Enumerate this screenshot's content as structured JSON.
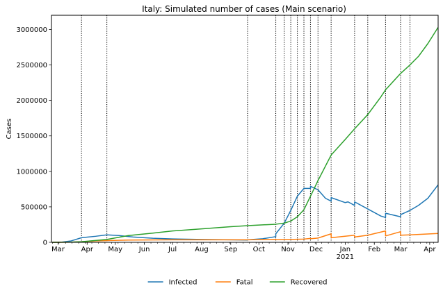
{
  "chart_data": {
    "type": "line",
    "title": "Italy: Simulated number of cases (Main scenario)",
    "xlabel": "",
    "ylabel": "Cases",
    "ylim": [
      0,
      3200000
    ],
    "xlim": [
      "2020-02-23",
      "2021-04-10"
    ],
    "y_ticks": [
      0,
      500000,
      1000000,
      1500000,
      2000000,
      2500000,
      3000000
    ],
    "x_ticks": [
      {
        "date": "2020-03-01",
        "label": "Mar"
      },
      {
        "date": "2020-04-01",
        "label": "Apr"
      },
      {
        "date": "2020-05-01",
        "label": "May"
      },
      {
        "date": "2020-06-01",
        "label": "Jun"
      },
      {
        "date": "2020-07-01",
        "label": "Jul"
      },
      {
        "date": "2020-08-01",
        "label": "Aug"
      },
      {
        "date": "2020-09-01",
        "label": "Sep"
      },
      {
        "date": "2020-10-01",
        "label": "Oct"
      },
      {
        "date": "2020-11-01",
        "label": "Nov"
      },
      {
        "date": "2020-12-01",
        "label": "Dec"
      },
      {
        "date": "2021-01-01",
        "label": "Jan"
      },
      {
        "date": "2021-02-01",
        "label": "Feb"
      },
      {
        "date": "2021-03-01",
        "label": "Mar"
      },
      {
        "date": "2021-04-01",
        "label": "Apr"
      }
    ],
    "year_label": {
      "date": "2021-01-01",
      "text": "2021"
    },
    "grid": false,
    "legend_position": "bottom-center",
    "change_dates": [
      "2020-03-26",
      "2020-04-22",
      "2020-09-19",
      "2020-10-19",
      "2020-10-28",
      "2020-11-04",
      "2020-11-11",
      "2020-11-18",
      "2020-11-25",
      "2020-12-03",
      "2020-12-17",
      "2021-01-11",
      "2021-01-25",
      "2021-02-13",
      "2021-03-01",
      "2021-03-11"
    ],
    "series": [
      {
        "name": "Infected",
        "color": "#1f77b4",
        "points": [
          [
            "2020-02-24",
            300
          ],
          [
            "2020-03-05",
            3000
          ],
          [
            "2020-03-15",
            20000
          ],
          [
            "2020-03-26",
            65000
          ],
          [
            "2020-04-10",
            85000
          ],
          [
            "2020-04-22",
            105000
          ],
          [
            "2020-05-05",
            95000
          ],
          [
            "2020-05-20",
            75000
          ],
          [
            "2020-06-10",
            58000
          ],
          [
            "2020-07-01",
            48000
          ],
          [
            "2020-08-01",
            40000
          ],
          [
            "2020-09-01",
            35000
          ],
          [
            "2020-09-19",
            32000
          ],
          [
            "2020-09-19",
            35000
          ],
          [
            "2020-10-05",
            50000
          ],
          [
            "2020-10-19",
            80000
          ],
          [
            "2020-10-19",
            120000
          ],
          [
            "2020-10-28",
            270000
          ],
          [
            "2020-11-04",
            450000
          ],
          [
            "2020-11-11",
            650000
          ],
          [
            "2020-11-18",
            760000
          ],
          [
            "2020-11-25",
            760000
          ],
          [
            "2020-11-25",
            790000
          ],
          [
            "2020-12-03",
            740000
          ],
          [
            "2020-12-11",
            620000
          ],
          [
            "2020-12-17",
            580000
          ],
          [
            "2020-12-17",
            630000
          ],
          [
            "2021-01-01",
            560000
          ],
          [
            "2021-01-04",
            570000
          ],
          [
            "2021-01-11",
            520000
          ],
          [
            "2021-01-11",
            570000
          ],
          [
            "2021-01-25",
            470000
          ],
          [
            "2021-02-08",
            370000
          ],
          [
            "2021-02-13",
            350000
          ],
          [
            "2021-02-13",
            410000
          ],
          [
            "2021-03-01",
            360000
          ],
          [
            "2021-03-01",
            390000
          ],
          [
            "2021-03-11",
            450000
          ],
          [
            "2021-03-20",
            520000
          ],
          [
            "2021-03-30",
            620000
          ],
          [
            "2021-04-10",
            810000
          ]
        ]
      },
      {
        "name": "Fatal",
        "color": "#ff7f0e",
        "points": [
          [
            "2020-02-24",
            0
          ],
          [
            "2020-03-15",
            2000
          ],
          [
            "2020-03-26",
            8000
          ],
          [
            "2020-04-10",
            20000
          ],
          [
            "2020-04-22",
            25000
          ],
          [
            "2020-05-15",
            32000
          ],
          [
            "2020-07-01",
            35000
          ],
          [
            "2020-09-19",
            36000
          ],
          [
            "2020-10-19",
            42000
          ],
          [
            "2020-10-19",
            38000
          ],
          [
            "2020-11-04",
            40000
          ],
          [
            "2020-11-18",
            45000
          ],
          [
            "2020-11-25",
            55000
          ],
          [
            "2020-11-25",
            50000
          ],
          [
            "2020-12-03",
            60000
          ],
          [
            "2020-12-17",
            120000
          ],
          [
            "2020-12-17",
            65000
          ],
          [
            "2021-01-11",
            100000
          ],
          [
            "2021-01-11",
            75000
          ],
          [
            "2021-01-25",
            100000
          ],
          [
            "2021-02-13",
            160000
          ],
          [
            "2021-02-13",
            90000
          ],
          [
            "2021-03-01",
            150000
          ],
          [
            "2021-03-01",
            100000
          ],
          [
            "2021-03-11",
            105000
          ],
          [
            "2021-04-10",
            125000
          ]
        ]
      },
      {
        "name": "Recovered",
        "color": "#2ca02c",
        "points": [
          [
            "2020-02-24",
            0
          ],
          [
            "2020-03-15",
            2000
          ],
          [
            "2020-03-26",
            8000
          ],
          [
            "2020-04-22",
            40000
          ],
          [
            "2020-05-15",
            95000
          ],
          [
            "2020-06-10",
            130000
          ],
          [
            "2020-07-01",
            160000
          ],
          [
            "2020-08-01",
            190000
          ],
          [
            "2020-09-01",
            220000
          ],
          [
            "2020-09-19",
            235000
          ],
          [
            "2020-10-19",
            255000
          ],
          [
            "2020-10-28",
            270000
          ],
          [
            "2020-11-04",
            300000
          ],
          [
            "2020-11-11",
            360000
          ],
          [
            "2020-11-18",
            460000
          ],
          [
            "2020-11-25",
            650000
          ],
          [
            "2020-12-03",
            870000
          ],
          [
            "2020-12-17",
            1230000
          ],
          [
            "2021-01-01",
            1450000
          ],
          [
            "2021-01-11",
            1600000
          ],
          [
            "2021-01-25",
            1800000
          ],
          [
            "2021-02-08",
            2050000
          ],
          [
            "2021-02-13",
            2150000
          ],
          [
            "2021-03-01",
            2380000
          ],
          [
            "2021-03-11",
            2500000
          ],
          [
            "2021-03-20",
            2620000
          ],
          [
            "2021-03-30",
            2800000
          ],
          [
            "2021-04-10",
            3030000
          ]
        ]
      }
    ]
  }
}
